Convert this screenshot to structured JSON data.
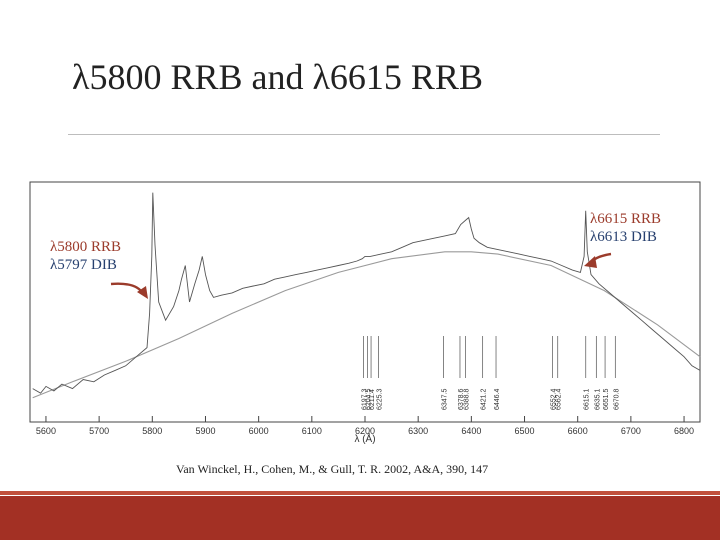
{
  "slide": {
    "title": "λ5800 RRB and λ6615 RRB",
    "citation": "Van Winckel, H., Cohen, M., & Gull, T. R. 2002, A&A, 390, 147",
    "footer_color": "#a33024"
  },
  "annotations": {
    "left": {
      "rrb": "λ5800 RRB",
      "dib": "λ5797 DIB",
      "target_x": 5800
    },
    "right": {
      "rrb": "λ6615 RRB",
      "dib": "λ6613 DIB",
      "target_x": 6615
    }
  },
  "chart_data": {
    "type": "line",
    "xlabel": "λ (Å)",
    "xlim": [
      5570,
      6830
    ],
    "x_ticks": [
      5600,
      5700,
      5800,
      5900,
      6000,
      6100,
      6200,
      6300,
      6400,
      6500,
      6600,
      6700,
      6800
    ],
    "grid": false,
    "series": [
      {
        "role": "spectrum",
        "x": [
          5575,
          5590,
          5600,
          5615,
          5630,
          5650,
          5670,
          5690,
          5710,
          5730,
          5750,
          5770,
          5790,
          5795,
          5799,
          5801,
          5805,
          5812,
          5825,
          5840,
          5850,
          5855,
          5862,
          5870,
          5880,
          5888,
          5894,
          5900,
          5908,
          5915,
          5930,
          5950,
          5970,
          5990,
          6010,
          6030,
          6050,
          6070,
          6090,
          6110,
          6130,
          6150,
          6170,
          6185,
          6195,
          6200,
          6210,
          6230,
          6250,
          6270,
          6290,
          6310,
          6330,
          6350,
          6370,
          6380,
          6390,
          6395,
          6400,
          6405,
          6415,
          6430,
          6450,
          6470,
          6490,
          6510,
          6530,
          6550,
          6570,
          6590,
          6605,
          6612,
          6615,
          6618,
          6625,
          6640,
          6660,
          6680,
          6700,
          6720,
          6740,
          6760,
          6780,
          6800,
          6815,
          6830
        ],
        "y": [
          0.12,
          0.1,
          0.13,
          0.11,
          0.14,
          0.12,
          0.16,
          0.15,
          0.18,
          0.2,
          0.22,
          0.26,
          0.3,
          0.45,
          0.7,
          0.98,
          0.75,
          0.5,
          0.42,
          0.48,
          0.55,
          0.6,
          0.66,
          0.5,
          0.58,
          0.64,
          0.7,
          0.62,
          0.55,
          0.52,
          0.53,
          0.54,
          0.56,
          0.57,
          0.58,
          0.6,
          0.61,
          0.62,
          0.63,
          0.64,
          0.65,
          0.66,
          0.67,
          0.68,
          0.69,
          0.7,
          0.7,
          0.71,
          0.72,
          0.74,
          0.76,
          0.77,
          0.78,
          0.79,
          0.8,
          0.84,
          0.86,
          0.87,
          0.82,
          0.78,
          0.76,
          0.74,
          0.73,
          0.72,
          0.71,
          0.7,
          0.69,
          0.68,
          0.66,
          0.64,
          0.63,
          0.7,
          0.9,
          0.72,
          0.62,
          0.58,
          0.54,
          0.5,
          0.46,
          0.42,
          0.38,
          0.34,
          0.3,
          0.26,
          0.22,
          0.2
        ]
      },
      {
        "role": "continuum",
        "x": [
          5575,
          5650,
          5750,
          5850,
          5950,
          6050,
          6150,
          6250,
          6350,
          6400,
          6450,
          6550,
          6650,
          6750,
          6830
        ],
        "y": [
          0.08,
          0.15,
          0.24,
          0.34,
          0.45,
          0.55,
          0.63,
          0.69,
          0.72,
          0.72,
          0.71,
          0.66,
          0.55,
          0.4,
          0.26
        ]
      }
    ],
    "line_ids": [
      {
        "x": 6197.3,
        "label": "6197.3"
      },
      {
        "x": 6204.5,
        "label": "6204.5"
      },
      {
        "x": 6211.4,
        "label": "6211.4"
      },
      {
        "x": 6225.3,
        "label": "6225.3"
      },
      {
        "x": 6347.5,
        "label": "6347.5"
      },
      {
        "x": 6378.6,
        "label": "6378.6"
      },
      {
        "x": 6388.8,
        "label": "6388.8"
      },
      {
        "x": 6421.2,
        "label": "6421.2"
      },
      {
        "x": 6446.4,
        "label": "6446.4"
      },
      {
        "x": 6552.4,
        "label": "6552.4"
      },
      {
        "x": 6562.4,
        "label": "6562.4"
      },
      {
        "x": 6615.1,
        "label": "6615.1"
      },
      {
        "x": 6635.1,
        "label": "6635.1"
      },
      {
        "x": 6651.5,
        "label": "6651.5"
      },
      {
        "x": 6670.8,
        "label": "6670.8"
      }
    ]
  }
}
